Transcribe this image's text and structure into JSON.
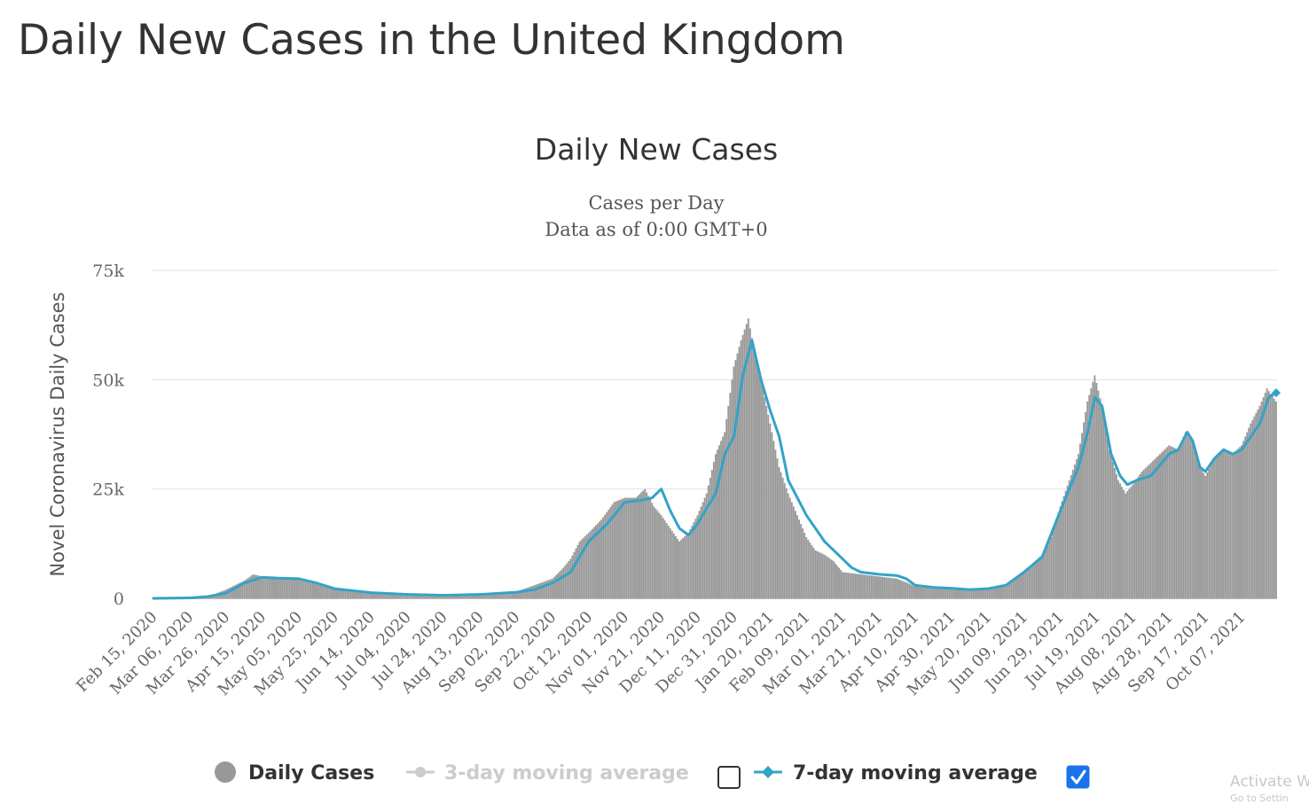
{
  "page": {
    "title": "Daily New Cases in the United Kingdom"
  },
  "watermark": {
    "line1": "Activate W",
    "line2": "Go to Settin"
  },
  "colors": {
    "bars": "#999999",
    "ma7": "#33a3c7",
    "ma3": "#cccccc",
    "grid": "#e0e0e0",
    "text": "#333333"
  },
  "chart_data": {
    "type": "bar",
    "title": "Daily New Cases",
    "subtitle": [
      "Cases per Day",
      "Data as of 0:00 GMT+0"
    ],
    "ylabel": "Novel Coronavirus Daily Cases",
    "xlabel": "",
    "ylim": [
      0,
      75000
    ],
    "yticks": [
      0,
      25000,
      50000,
      75000
    ],
    "ytick_labels": [
      "0",
      "25k",
      "50k",
      "75k"
    ],
    "grid": true,
    "date_range": [
      "2020-02-15",
      "2021-10-26"
    ],
    "xtick_labels": [
      "Feb 15, 2020",
      "Mar 06, 2020",
      "Mar 26, 2020",
      "Apr 15, 2020",
      "May 05, 2020",
      "May 25, 2020",
      "Jun 14, 2020",
      "Jul 04, 2020",
      "Jul 24, 2020",
      "Aug 13, 2020",
      "Sep 02, 2020",
      "Sep 22, 2020",
      "Oct 12, 2020",
      "Nov 01, 2020",
      "Nov 21, 2020",
      "Dec 11, 2020",
      "Dec 31, 2020",
      "Jan 20, 2021",
      "Feb 09, 2021",
      "Mar 01, 2021",
      "Mar 21, 2021",
      "Apr 10, 2021",
      "Apr 30, 2021",
      "May 20, 2021",
      "Jun 09, 2021",
      "Jun 29, 2021",
      "Jul 19, 2021",
      "Aug 08, 2021",
      "Aug 28, 2021",
      "Sep 17, 2021",
      "Oct 07, 2021"
    ],
    "series": [
      {
        "name": "Daily Cases",
        "type": "bar",
        "color": "#999999",
        "points": [
          [
            "2020-02-15",
            0
          ],
          [
            "2020-03-06",
            100
          ],
          [
            "2020-03-18",
            700
          ],
          [
            "2020-03-26",
            2000
          ],
          [
            "2020-04-05",
            4000
          ],
          [
            "2020-04-10",
            5500
          ],
          [
            "2020-04-15",
            5000
          ],
          [
            "2020-04-25",
            4500
          ],
          [
            "2020-05-05",
            4200
          ],
          [
            "2020-05-15",
            3200
          ],
          [
            "2020-05-25",
            2000
          ],
          [
            "2020-06-14",
            1300
          ],
          [
            "2020-07-04",
            700
          ],
          [
            "2020-07-24",
            700
          ],
          [
            "2020-08-13",
            900
          ],
          [
            "2020-09-02",
            1500
          ],
          [
            "2020-09-12",
            3000
          ],
          [
            "2020-09-22",
            4500
          ],
          [
            "2020-09-27",
            6500
          ],
          [
            "2020-10-02",
            9000
          ],
          [
            "2020-10-07",
            13000
          ],
          [
            "2020-10-12",
            15000
          ],
          [
            "2020-10-19",
            18000
          ],
          [
            "2020-10-26",
            22000
          ],
          [
            "2020-11-01",
            23000
          ],
          [
            "2020-11-07",
            23000
          ],
          [
            "2020-11-12",
            25000
          ],
          [
            "2020-11-17",
            21000
          ],
          [
            "2020-11-21",
            19000
          ],
          [
            "2020-11-26",
            16000
          ],
          [
            "2020-12-01",
            13000
          ],
          [
            "2020-12-06",
            15000
          ],
          [
            "2020-12-11",
            19000
          ],
          [
            "2020-12-16",
            24000
          ],
          [
            "2020-12-21",
            33000
          ],
          [
            "2020-12-26",
            38000
          ],
          [
            "2020-12-31",
            53000
          ],
          [
            "2021-01-04",
            59000
          ],
          [
            "2021-01-08",
            64000
          ],
          [
            "2021-01-12",
            55000
          ],
          [
            "2021-01-16",
            48000
          ],
          [
            "2021-01-20",
            40000
          ],
          [
            "2021-01-25",
            30000
          ],
          [
            "2021-01-30",
            24000
          ],
          [
            "2021-02-04",
            19000
          ],
          [
            "2021-02-09",
            14000
          ],
          [
            "2021-02-14",
            11000
          ],
          [
            "2021-02-19",
            10000
          ],
          [
            "2021-02-24",
            8500
          ],
          [
            "2021-03-01",
            6000
          ],
          [
            "2021-03-11",
            5500
          ],
          [
            "2021-03-21",
            5000
          ],
          [
            "2021-03-31",
            4500
          ],
          [
            "2021-04-10",
            2800
          ],
          [
            "2021-04-20",
            2500
          ],
          [
            "2021-04-30",
            2200
          ],
          [
            "2021-05-10",
            2000
          ],
          [
            "2021-05-20",
            2300
          ],
          [
            "2021-05-30",
            3000
          ],
          [
            "2021-06-09",
            6000
          ],
          [
            "2021-06-19",
            10000
          ],
          [
            "2021-06-24",
            14000
          ],
          [
            "2021-06-29",
            21000
          ],
          [
            "2021-07-04",
            27000
          ],
          [
            "2021-07-09",
            33000
          ],
          [
            "2021-07-14",
            45000
          ],
          [
            "2021-07-18",
            51000
          ],
          [
            "2021-07-22",
            44000
          ],
          [
            "2021-07-26",
            34000
          ],
          [
            "2021-07-31",
            27000
          ],
          [
            "2021-08-04",
            24000
          ],
          [
            "2021-08-08",
            26000
          ],
          [
            "2021-08-13",
            29000
          ],
          [
            "2021-08-18",
            31000
          ],
          [
            "2021-08-23",
            33000
          ],
          [
            "2021-08-28",
            35000
          ],
          [
            "2021-09-02",
            34000
          ],
          [
            "2021-09-06",
            38000
          ],
          [
            "2021-09-10",
            36000
          ],
          [
            "2021-09-14",
            30000
          ],
          [
            "2021-09-17",
            28000
          ],
          [
            "2021-09-22",
            32000
          ],
          [
            "2021-09-27",
            34000
          ],
          [
            "2021-10-02",
            33000
          ],
          [
            "2021-10-07",
            35000
          ],
          [
            "2021-10-12",
            40000
          ],
          [
            "2021-10-17",
            44000
          ],
          [
            "2021-10-21",
            48000
          ],
          [
            "2021-10-26",
            45000
          ]
        ]
      },
      {
        "name": "7-day moving average",
        "type": "line",
        "color": "#33a3c7",
        "points": [
          [
            "2020-02-15",
            0
          ],
          [
            "2020-03-06",
            100
          ],
          [
            "2020-03-16",
            400
          ],
          [
            "2020-03-26",
            1200
          ],
          [
            "2020-04-05",
            3500
          ],
          [
            "2020-04-15",
            4800
          ],
          [
            "2020-04-25",
            4600
          ],
          [
            "2020-05-05",
            4500
          ],
          [
            "2020-05-15",
            3500
          ],
          [
            "2020-05-25",
            2200
          ],
          [
            "2020-06-14",
            1300
          ],
          [
            "2020-07-04",
            900
          ],
          [
            "2020-07-24",
            700
          ],
          [
            "2020-08-13",
            900
          ],
          [
            "2020-09-02",
            1400
          ],
          [
            "2020-09-12",
            2000
          ],
          [
            "2020-09-22",
            3500
          ],
          [
            "2020-10-02",
            6000
          ],
          [
            "2020-10-12",
            13000
          ],
          [
            "2020-10-22",
            17000
          ],
          [
            "2020-11-01",
            22000
          ],
          [
            "2020-11-11",
            22500
          ],
          [
            "2020-11-16",
            23000
          ],
          [
            "2020-11-21",
            25000
          ],
          [
            "2020-11-26",
            20000
          ],
          [
            "2020-12-01",
            16000
          ],
          [
            "2020-12-06",
            14500
          ],
          [
            "2020-12-11",
            17000
          ],
          [
            "2020-12-21",
            24000
          ],
          [
            "2020-12-26",
            33000
          ],
          [
            "2020-12-31",
            37000
          ],
          [
            "2021-01-05",
            51000
          ],
          [
            "2021-01-10",
            59000
          ],
          [
            "2021-01-15",
            50000
          ],
          [
            "2021-01-20",
            43000
          ],
          [
            "2021-01-25",
            37000
          ],
          [
            "2021-01-30",
            27000
          ],
          [
            "2021-02-09",
            19000
          ],
          [
            "2021-02-19",
            13000
          ],
          [
            "2021-02-24",
            11000
          ],
          [
            "2021-03-01",
            9000
          ],
          [
            "2021-03-06",
            7000
          ],
          [
            "2021-03-11",
            6000
          ],
          [
            "2021-03-21",
            5500
          ],
          [
            "2021-03-31",
            5200
          ],
          [
            "2021-04-05",
            4500
          ],
          [
            "2021-04-10",
            3000
          ],
          [
            "2021-04-20",
            2500
          ],
          [
            "2021-04-30",
            2300
          ],
          [
            "2021-05-10",
            2000
          ],
          [
            "2021-05-20",
            2200
          ],
          [
            "2021-05-30",
            3000
          ],
          [
            "2021-06-09",
            6000
          ],
          [
            "2021-06-19",
            9500
          ],
          [
            "2021-06-29",
            20000
          ],
          [
            "2021-07-09",
            30000
          ],
          [
            "2021-07-14",
            38000
          ],
          [
            "2021-07-18",
            46000
          ],
          [
            "2021-07-22",
            44000
          ],
          [
            "2021-07-27",
            33000
          ],
          [
            "2021-08-01",
            28000
          ],
          [
            "2021-08-05",
            26000
          ],
          [
            "2021-08-10",
            27000
          ],
          [
            "2021-08-18",
            28000
          ],
          [
            "2021-08-28",
            33000
          ],
          [
            "2021-09-02",
            34000
          ],
          [
            "2021-09-07",
            38000
          ],
          [
            "2021-09-10",
            36000
          ],
          [
            "2021-09-14",
            30000
          ],
          [
            "2021-09-17",
            29000
          ],
          [
            "2021-09-22",
            32000
          ],
          [
            "2021-09-27",
            34000
          ],
          [
            "2021-10-02",
            33000
          ],
          [
            "2021-10-07",
            34000
          ],
          [
            "2021-10-12",
            37000
          ],
          [
            "2021-10-17",
            40000
          ],
          [
            "2021-10-22",
            46000
          ],
          [
            "2021-10-26",
            47000
          ]
        ]
      }
    ],
    "legend": {
      "position": "bottom",
      "items": [
        {
          "label": "Daily Cases",
          "color": "#999999",
          "marker": "circle",
          "active": true
        },
        {
          "label": "3-day moving average",
          "color": "#cccccc",
          "marker": "line-circle",
          "active": false,
          "checkbox": false
        },
        {
          "label": "7-day moving average",
          "color": "#33a3c7",
          "marker": "line-diamond",
          "active": true,
          "checkbox": true
        }
      ]
    }
  }
}
